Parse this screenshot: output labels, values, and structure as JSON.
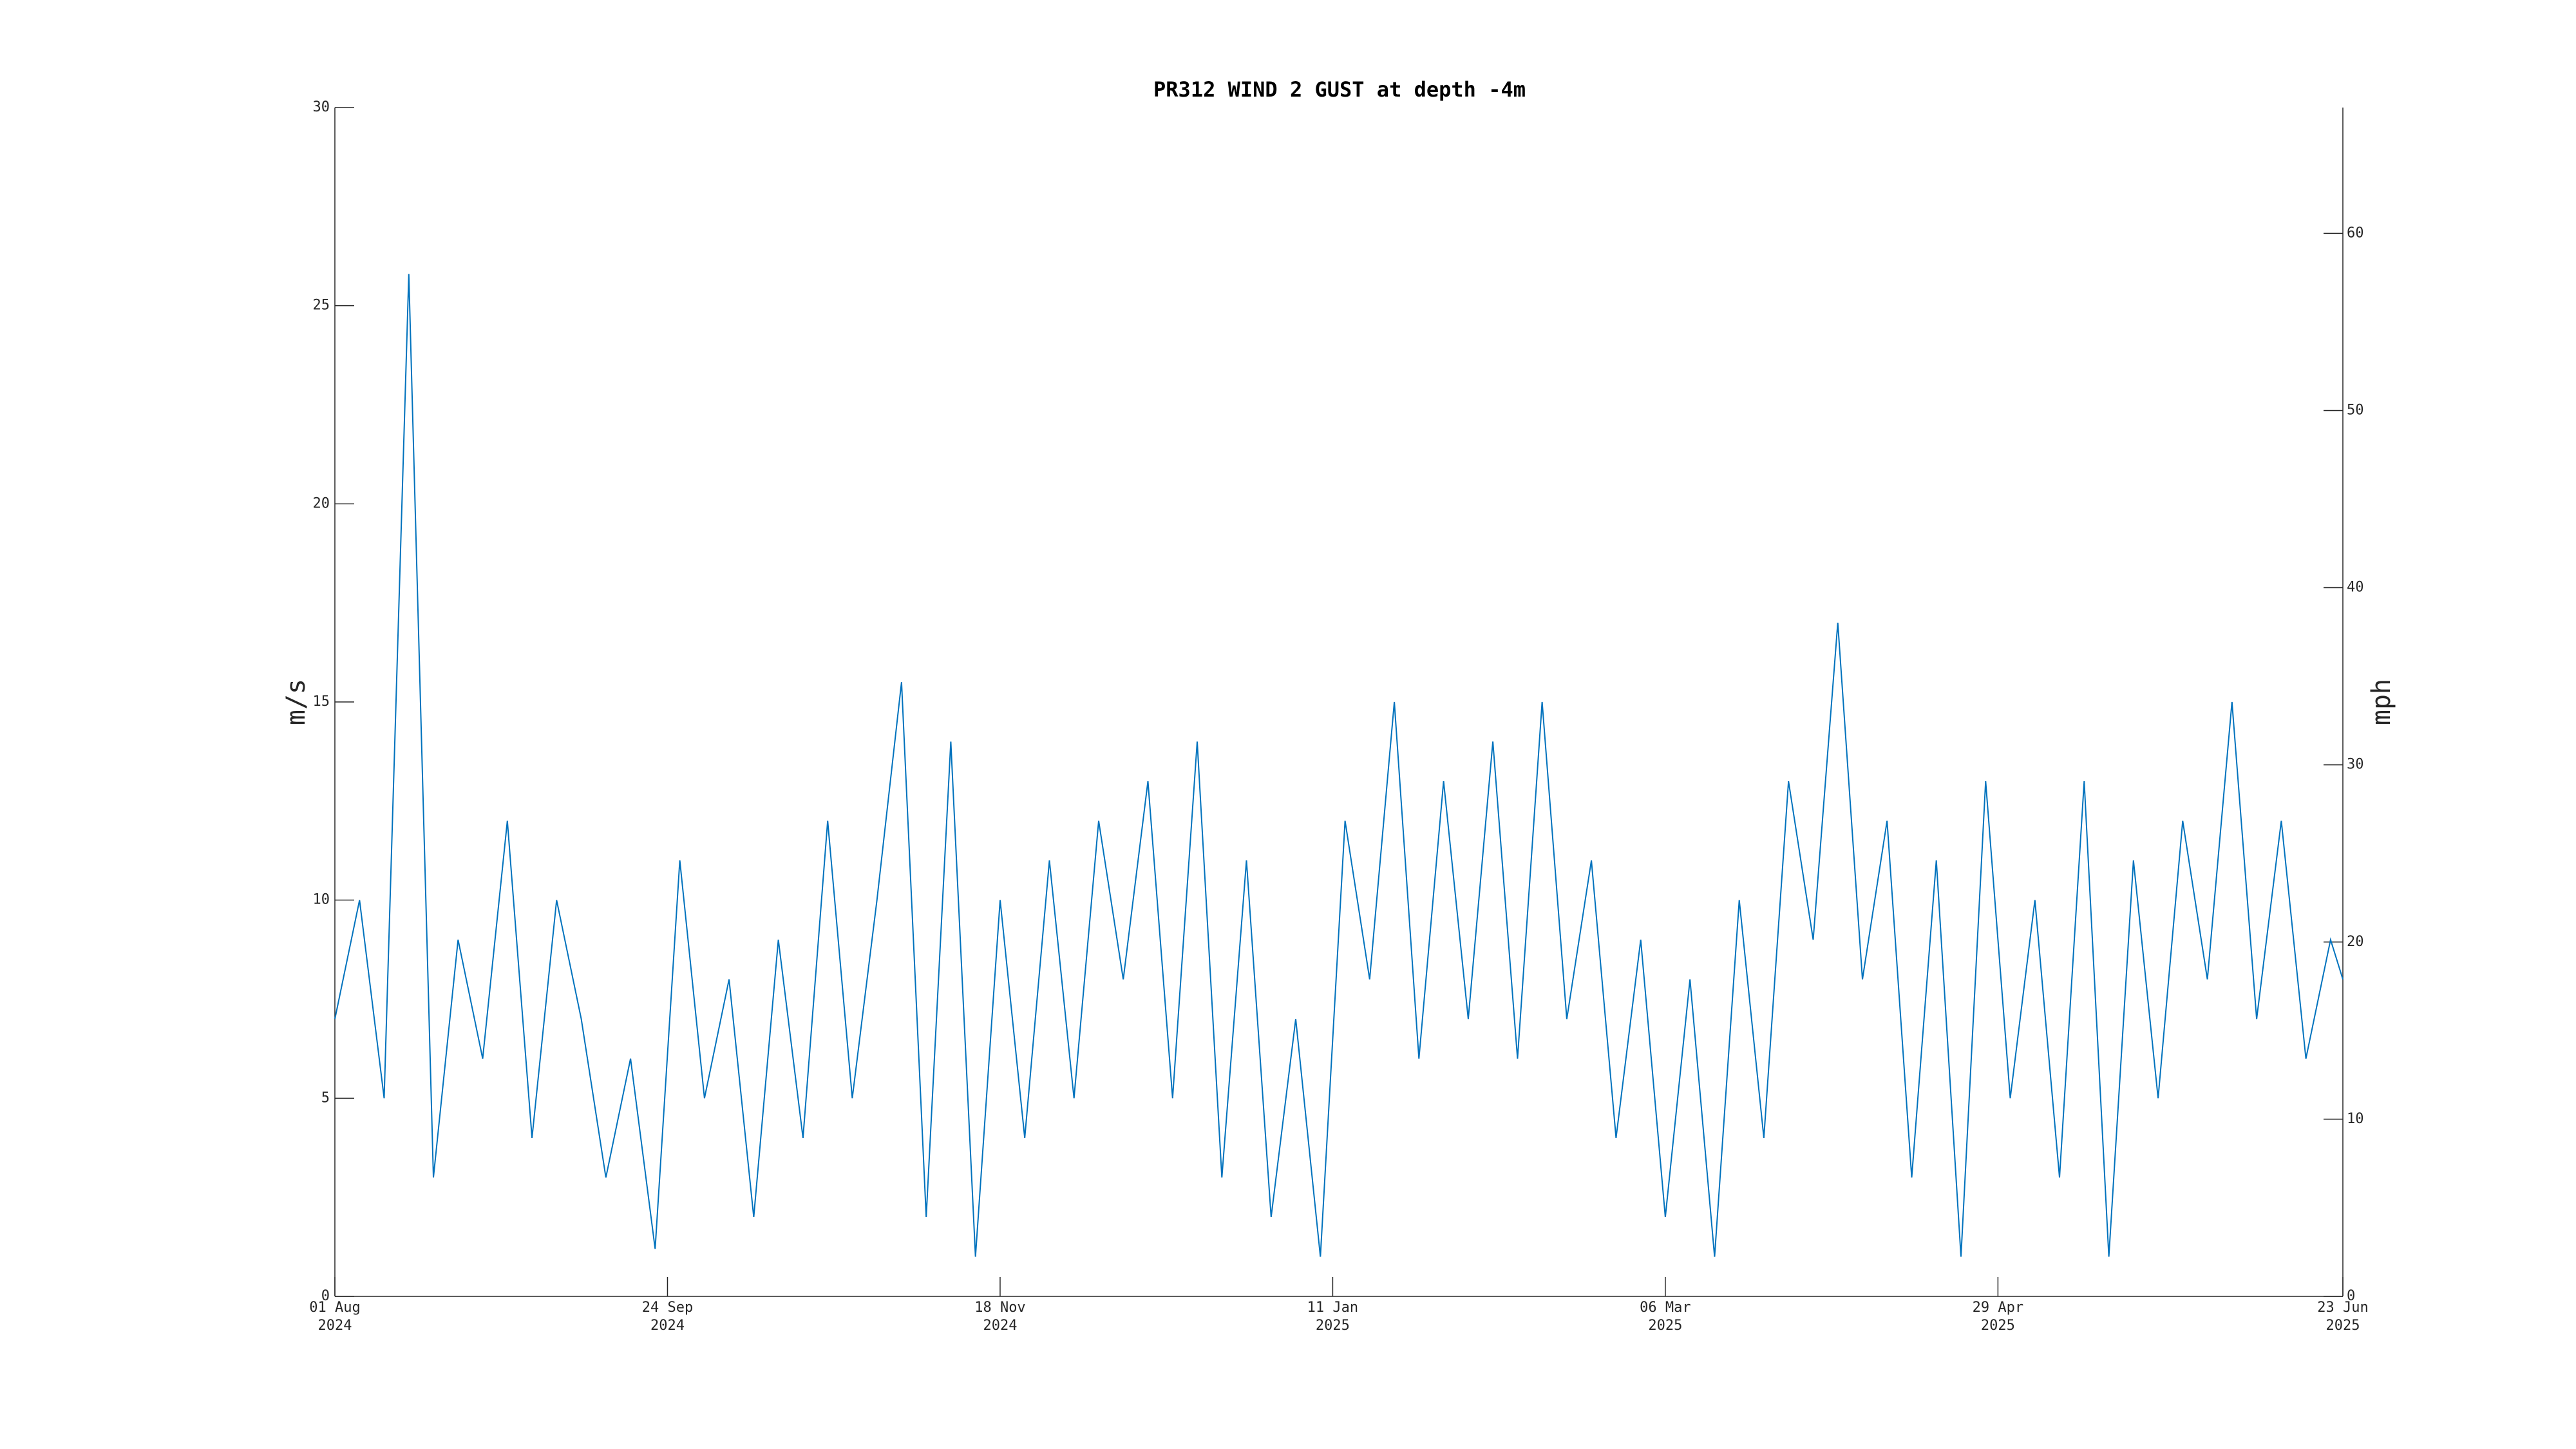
{
  "chart_data": {
    "type": "line",
    "title": "PR312 WIND 2 GUST at depth -4m",
    "ylabel": "m/s",
    "y2label": "mph",
    "color": "#0072bd",
    "x": [
      "2024-08-01",
      "2024-08-05",
      "2024-08-09",
      "2024-08-13",
      "2024-08-17",
      "2024-08-21",
      "2024-08-25",
      "2024-08-29",
      "2024-09-02",
      "2024-09-06",
      "2024-09-10",
      "2024-09-14",
      "2024-09-18",
      "2024-09-22",
      "2024-09-26",
      "2024-09-30",
      "2024-10-04",
      "2024-10-08",
      "2024-10-12",
      "2024-10-16",
      "2024-10-20",
      "2024-10-24",
      "2024-10-28",
      "2024-11-01",
      "2024-11-05",
      "2024-11-09",
      "2024-11-13",
      "2024-11-17",
      "2024-11-21",
      "2024-11-25",
      "2024-11-29",
      "2024-12-03",
      "2024-12-07",
      "2024-12-11",
      "2024-12-15",
      "2024-12-19",
      "2024-12-23",
      "2024-12-27",
      "2024-12-31",
      "2025-01-04",
      "2025-01-08",
      "2025-01-12",
      "2025-01-16",
      "2025-01-20",
      "2025-01-24",
      "2025-01-28",
      "2025-02-01",
      "2025-02-05",
      "2025-02-09",
      "2025-02-13",
      "2025-02-17",
      "2025-02-21",
      "2025-02-25",
      "2025-03-01",
      "2025-03-05",
      "2025-03-09",
      "2025-03-13",
      "2025-03-17",
      "2025-03-21",
      "2025-03-25",
      "2025-03-29",
      "2025-04-02",
      "2025-04-06",
      "2025-04-10",
      "2025-04-14",
      "2025-04-18",
      "2025-04-22",
      "2025-04-26",
      "2025-04-30",
      "2025-05-04",
      "2025-05-08",
      "2025-05-12",
      "2025-05-16",
      "2025-05-20",
      "2025-05-24",
      "2025-05-28",
      "2025-06-01",
      "2025-06-05",
      "2025-06-09",
      "2025-06-13",
      "2025-06-17",
      "2025-06-21",
      "2025-06-23"
    ],
    "values": [
      7,
      10,
      5,
      25.8,
      3,
      9,
      6,
      12,
      4,
      10,
      7,
      3,
      6,
      1.2,
      11,
      5,
      8,
      2,
      9,
      4,
      12,
      5,
      10,
      15.5,
      2,
      14,
      1,
      10,
      4,
      11,
      5,
      12,
      8,
      13,
      5,
      14,
      3,
      11,
      2,
      7,
      1,
      12,
      8,
      15,
      6,
      13,
      7,
      14,
      6,
      15,
      7,
      11,
      4,
      9,
      2,
      8,
      1,
      10,
      4,
      13,
      9,
      17,
      8,
      12,
      3,
      11,
      1,
      13,
      5,
      10,
      3,
      13,
      1,
      11,
      5,
      12,
      8,
      15,
      7,
      12,
      6,
      9,
      8
    ],
    "xlim": [
      "2024-08-01",
      "2025-06-23"
    ],
    "xticks": [
      {
        "value": "2024-08-01",
        "label": "01 Aug\n2024"
      },
      {
        "value": "2024-09-24",
        "label": "24 Sep\n2024"
      },
      {
        "value": "2024-11-17",
        "label": "18 Nov\n2024"
      },
      {
        "value": "2025-01-10",
        "label": "11 Jan\n2025"
      },
      {
        "value": "2025-03-05",
        "label": "06 Mar\n2025"
      },
      {
        "value": "2025-04-28",
        "label": "29 Apr\n2025"
      },
      {
        "value": "2025-06-23",
        "label": "23 Jun\n2025"
      }
    ],
    "ylim": [
      0,
      30
    ],
    "yticks": [
      0,
      5,
      10,
      15,
      20,
      25,
      30
    ],
    "y2lim": [
      0,
      67.1
    ],
    "y2ticks": [
      0,
      10,
      20,
      30,
      40,
      50,
      60
    ]
  }
}
